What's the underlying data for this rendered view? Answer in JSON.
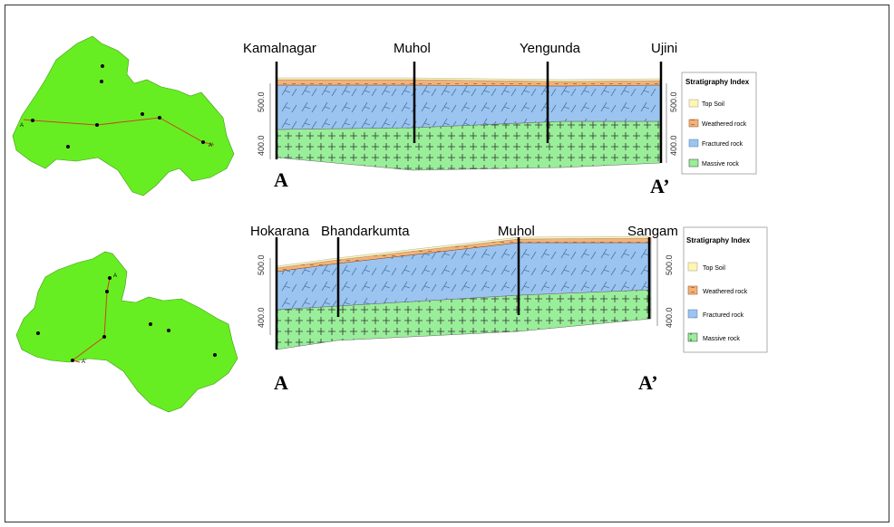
{
  "colors": {
    "map_fill": "#66ee22",
    "top_soil": "#fff6b0",
    "weathered": "#f2b27a",
    "fractured": "#9cc4f0",
    "massive": "#99ee99",
    "boundary": "#cc4422"
  },
  "section1": {
    "wells": [
      "Kamalnagar",
      "Muhol",
      "Yengunda",
      "Ujini"
    ],
    "start_label": "A",
    "end_label": "A’",
    "y_ticks": [
      "500.0",
      "400.0"
    ],
    "legend": {
      "title": "Stratigraphy Index",
      "items": [
        "Top Soil",
        "Weathered rock",
        "Fractured rock",
        "Massive rock"
      ]
    }
  },
  "section2": {
    "wells": [
      "Hokarana",
      "Bhandarkumta",
      "Muhol",
      "Sangam"
    ],
    "start_label": "A",
    "end_label": "A’",
    "y_ticks": [
      "500.0",
      "400.0"
    ],
    "legend": {
      "title": "Stratigraphy Index",
      "items": [
        "Top Soil",
        "Weathered rock",
        "Fractured rock",
        "Massive rock"
      ]
    }
  },
  "map1": {
    "start_label": "A",
    "end_label": "A’"
  },
  "map2": {
    "start_label": "A",
    "end_label": "A’"
  }
}
